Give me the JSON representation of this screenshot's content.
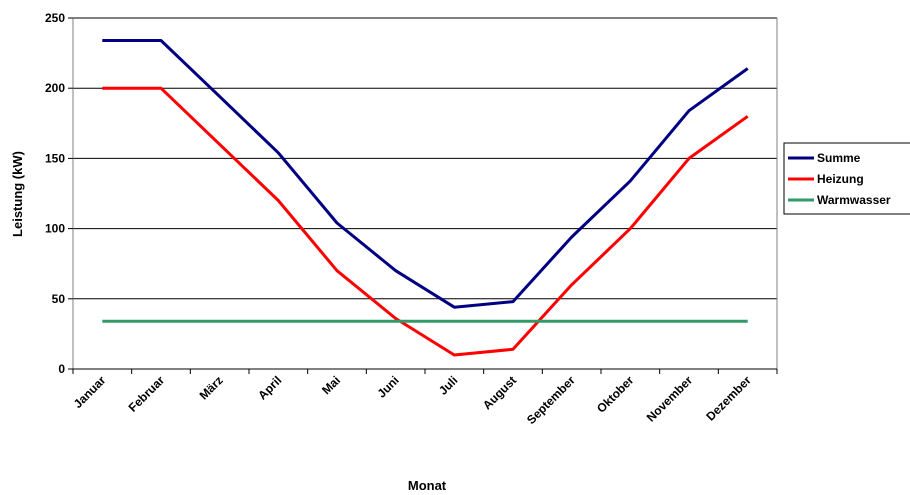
{
  "chart_data": {
    "type": "line",
    "title": "",
    "xlabel": "Monat",
    "ylabel": "Leistung (kW)",
    "categories": [
      "Januar",
      "Februar",
      "März",
      "April",
      "Mai",
      "Juni",
      "Juli",
      "August",
      "September",
      "Oktober",
      "November",
      "Dezember"
    ],
    "ylim": [
      0,
      250
    ],
    "yticks": [
      0,
      50,
      100,
      150,
      200,
      250
    ],
    "grid": true,
    "legend_position": "right",
    "series": [
      {
        "name": "Summe",
        "color": "#000080",
        "values": [
          234,
          234,
          194,
          154,
          104,
          70,
          44,
          48,
          94,
          134,
          184,
          214
        ]
      },
      {
        "name": "Heizung",
        "color": "#ff0000",
        "values": [
          200,
          200,
          160,
          120,
          70,
          36,
          10,
          14,
          60,
          100,
          150,
          180
        ]
      },
      {
        "name": "Warmwasser",
        "color": "#339966",
        "values": [
          34,
          34,
          34,
          34,
          34,
          34,
          34,
          34,
          34,
          34,
          34,
          34
        ]
      }
    ]
  }
}
